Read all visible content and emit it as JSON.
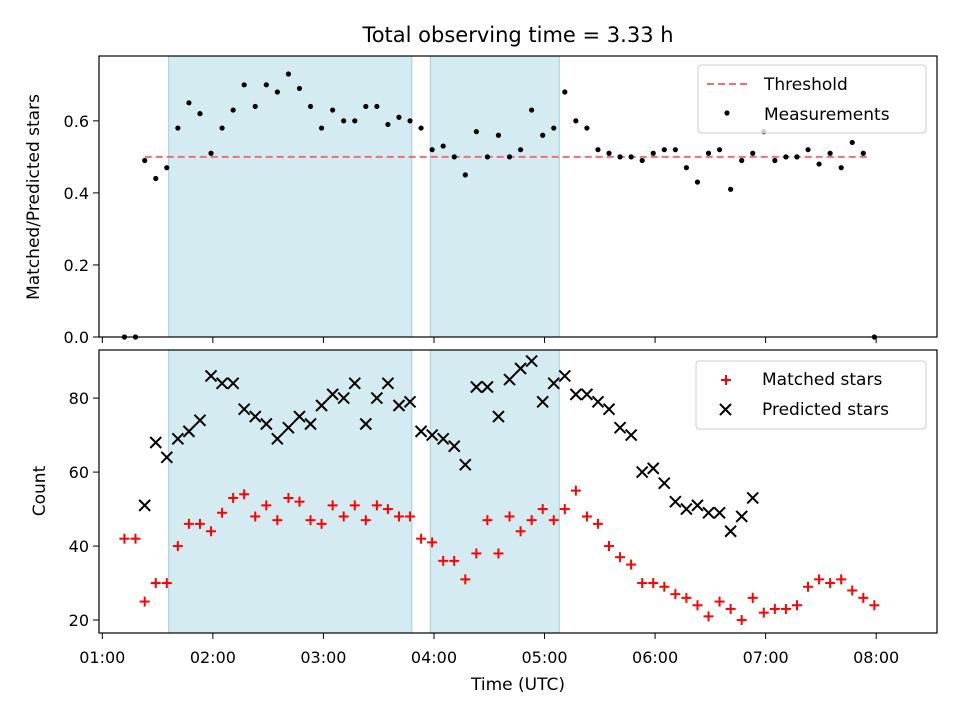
{
  "title": "Total observing time = 3.33 h",
  "chart_data": [
    {
      "type": "scatter",
      "ylabel": "Matched/Predicted stars",
      "ylim": [
        0,
        0.78
      ],
      "xlim_hours": [
        0.97,
        8.55
      ],
      "yticks": [
        0.0,
        0.2,
        0.4,
        0.6
      ],
      "ytick_labels": [
        "0.0",
        "0.2",
        "0.4",
        "0.6"
      ],
      "shaded_intervals": [
        [
          "01:36",
          "03:48"
        ],
        [
          "03:58",
          "05:08"
        ]
      ],
      "threshold": {
        "name": "Threshold",
        "value": 0.5,
        "x_range": [
          "01:23",
          "07:57"
        ],
        "color": "#f07070"
      },
      "series": [
        {
          "name": "Measurements",
          "color": "#000000",
          "x": [
            "01:12",
            "01:18",
            "01:23",
            "01:29",
            "01:35",
            "01:41",
            "01:47",
            "01:53",
            "01:59",
            "02:05",
            "02:11",
            "02:17",
            "02:23",
            "02:29",
            "02:35",
            "02:41",
            "02:47",
            "02:53",
            "02:59",
            "03:05",
            "03:11",
            "03:17",
            "03:23",
            "03:29",
            "03:35",
            "03:41",
            "03:47",
            "03:53",
            "03:59",
            "04:05",
            "04:11",
            "04:17",
            "04:23",
            "04:29",
            "04:35",
            "04:41",
            "04:47",
            "04:53",
            "04:59",
            "05:05",
            "05:11",
            "05:17",
            "05:23",
            "05:29",
            "05:35",
            "05:41",
            "05:47",
            "05:53",
            "05:59",
            "06:05",
            "06:11",
            "06:17",
            "06:23",
            "06:29",
            "06:35",
            "06:41",
            "06:47",
            "06:53",
            "06:59",
            "07:05",
            "07:11",
            "07:17",
            "07:23",
            "07:29",
            "07:35",
            "07:41",
            "07:47",
            "07:53",
            "07:59"
          ],
          "y": [
            0.0,
            0.0,
            0.49,
            0.44,
            0.47,
            0.58,
            0.65,
            0.62,
            0.51,
            0.58,
            0.63,
            0.7,
            0.64,
            0.7,
            0.68,
            0.73,
            0.69,
            0.64,
            0.58,
            0.63,
            0.6,
            0.6,
            0.64,
            0.64,
            0.59,
            0.61,
            0.6,
            0.58,
            0.52,
            0.53,
            0.5,
            0.45,
            0.57,
            0.5,
            0.56,
            0.5,
            0.52,
            0.63,
            0.56,
            0.58,
            0.68,
            0.6,
            0.58,
            0.52,
            0.51,
            0.5,
            0.5,
            0.49,
            0.51,
            0.52,
            0.52,
            0.47,
            0.43,
            0.51,
            0.52,
            0.41,
            0.49,
            0.51,
            0.57,
            0.49,
            0.5,
            0.5,
            0.52,
            0.48,
            0.51,
            0.47,
            0.54,
            0.51,
            0.0
          ]
        }
      ]
    },
    {
      "type": "scatter",
      "ylabel": "Count",
      "xlabel": "Time (UTC)",
      "ylim": [
        16.5,
        93
      ],
      "xlim_hours": [
        0.97,
        8.55
      ],
      "yticks": [
        20,
        40,
        60,
        80
      ],
      "ytick_labels": [
        "20",
        "40",
        "60",
        "80"
      ],
      "xticks": [
        "01:00",
        "02:00",
        "03:00",
        "04:00",
        "05:00",
        "06:00",
        "07:00",
        "08:00"
      ],
      "shaded_intervals": [
        [
          "01:36",
          "03:48"
        ],
        [
          "03:58",
          "05:08"
        ]
      ],
      "series": [
        {
          "name": "Matched stars",
          "color": "#ff0000",
          "marker": "plus",
          "x": [
            "01:12",
            "01:18",
            "01:23",
            "01:29",
            "01:35",
            "01:41",
            "01:47",
            "01:53",
            "01:59",
            "02:05",
            "02:11",
            "02:17",
            "02:23",
            "02:29",
            "02:35",
            "02:41",
            "02:47",
            "02:53",
            "02:59",
            "03:05",
            "03:11",
            "03:17",
            "03:23",
            "03:29",
            "03:35",
            "03:41",
            "03:47",
            "03:53",
            "03:59",
            "04:05",
            "04:11",
            "04:17",
            "04:23",
            "04:29",
            "04:35",
            "04:41",
            "04:47",
            "04:53",
            "04:59",
            "05:05",
            "05:11",
            "05:17",
            "05:23",
            "05:29",
            "05:35",
            "05:41",
            "05:47",
            "05:53",
            "05:59",
            "06:05",
            "06:11",
            "06:17",
            "06:23",
            "06:29",
            "06:35",
            "06:41",
            "06:47",
            "06:53",
            "06:59",
            "07:05",
            "07:11",
            "07:17",
            "07:23",
            "07:29",
            "07:35",
            "07:41",
            "07:47",
            "07:53",
            "07:59"
          ],
          "y": [
            42,
            42,
            25,
            30,
            30,
            40,
            46,
            46,
            44,
            49,
            53,
            54,
            48,
            51,
            47,
            53,
            52,
            47,
            46,
            51,
            48,
            51,
            47,
            51,
            50,
            48,
            48,
            42,
            41,
            36,
            36,
            31,
            38,
            47,
            38,
            48,
            44,
            47,
            50,
            47,
            50,
            55,
            48,
            46,
            40,
            37,
            35,
            30,
            30,
            29,
            27,
            26,
            24,
            21,
            25,
            23,
            20,
            26,
            22,
            23,
            23,
            24,
            29,
            31,
            30,
            31,
            28,
            26,
            24
          ]
        },
        {
          "name": "Predicted stars",
          "color": "#000000",
          "marker": "x",
          "x": [
            "01:23",
            "01:29",
            "01:35",
            "01:41",
            "01:47",
            "01:53",
            "01:59",
            "02:05",
            "02:11",
            "02:17",
            "02:23",
            "02:29",
            "02:35",
            "02:41",
            "02:47",
            "02:53",
            "02:59",
            "03:05",
            "03:11",
            "03:17",
            "03:23",
            "03:29",
            "03:35",
            "03:41",
            "03:47",
            "03:53",
            "03:59",
            "04:05",
            "04:11",
            "04:17",
            "04:23",
            "04:29",
            "04:35",
            "04:41",
            "04:47",
            "04:53",
            "04:59",
            "05:05",
            "05:11",
            "05:17",
            "05:23",
            "05:29",
            "05:35",
            "05:41",
            "05:47",
            "05:53",
            "05:59",
            "06:05",
            "06:11",
            "06:17",
            "06:23",
            "06:29",
            "06:35",
            "06:41",
            "06:47",
            "06:53"
          ],
          "y": [
            51,
            68,
            64,
            69,
            71,
            74,
            86,
            84,
            84,
            77,
            75,
            73,
            69,
            72,
            75,
            73,
            78,
            81,
            80,
            84,
            73,
            80,
            84,
            78,
            79,
            71,
            70,
            69,
            67,
            62,
            83,
            83,
            75,
            85,
            88,
            90,
            79,
            84,
            86,
            81,
            81,
            79,
            77,
            72,
            70,
            60,
            61,
            57,
            52,
            50,
            51,
            49,
            49,
            44,
            48,
            53
          ]
        }
      ]
    }
  ]
}
